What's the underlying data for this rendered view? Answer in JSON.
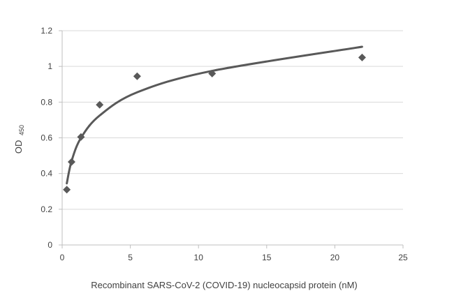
{
  "chart_data": {
    "type": "scatter",
    "title": "",
    "xlabel": "Recombinant SARS-CoV-2 (COVID-19) nucleocapsid protein (nM)",
    "ylabel": "OD",
    "ylabel_sub": "450",
    "xlim": [
      0,
      25
    ],
    "ylim": [
      0,
      1.2
    ],
    "x_ticks": [
      0,
      5,
      10,
      15,
      20,
      25
    ],
    "y_ticks": [
      0,
      0.2,
      0.4,
      0.6,
      0.8,
      1,
      1.2
    ],
    "grid": "horizontal",
    "legend": "none",
    "series": [
      {
        "marker": "diamond",
        "color": "#595959",
        "points": [
          {
            "x": 0.34,
            "y": 0.31
          },
          {
            "x": 0.69,
            "y": 0.465
          },
          {
            "x": 1.38,
            "y": 0.605
          },
          {
            "x": 2.75,
            "y": 0.785
          },
          {
            "x": 5.5,
            "y": 0.945
          },
          {
            "x": 11.0,
            "y": 0.96
          },
          {
            "x": 22.0,
            "y": 1.05
          }
        ]
      }
    ],
    "trendline": {
      "type": "logarithmic",
      "color": "#595959",
      "points": [
        {
          "x": 0.34,
          "y": 0.345
        },
        {
          "x": 0.69,
          "y": 0.47
        },
        {
          "x": 1.38,
          "y": 0.6
        },
        {
          "x": 2.75,
          "y": 0.725
        },
        {
          "x": 5.5,
          "y": 0.855
        },
        {
          "x": 11.0,
          "y": 0.975
        },
        {
          "x": 22.0,
          "y": 1.11
        }
      ]
    }
  }
}
